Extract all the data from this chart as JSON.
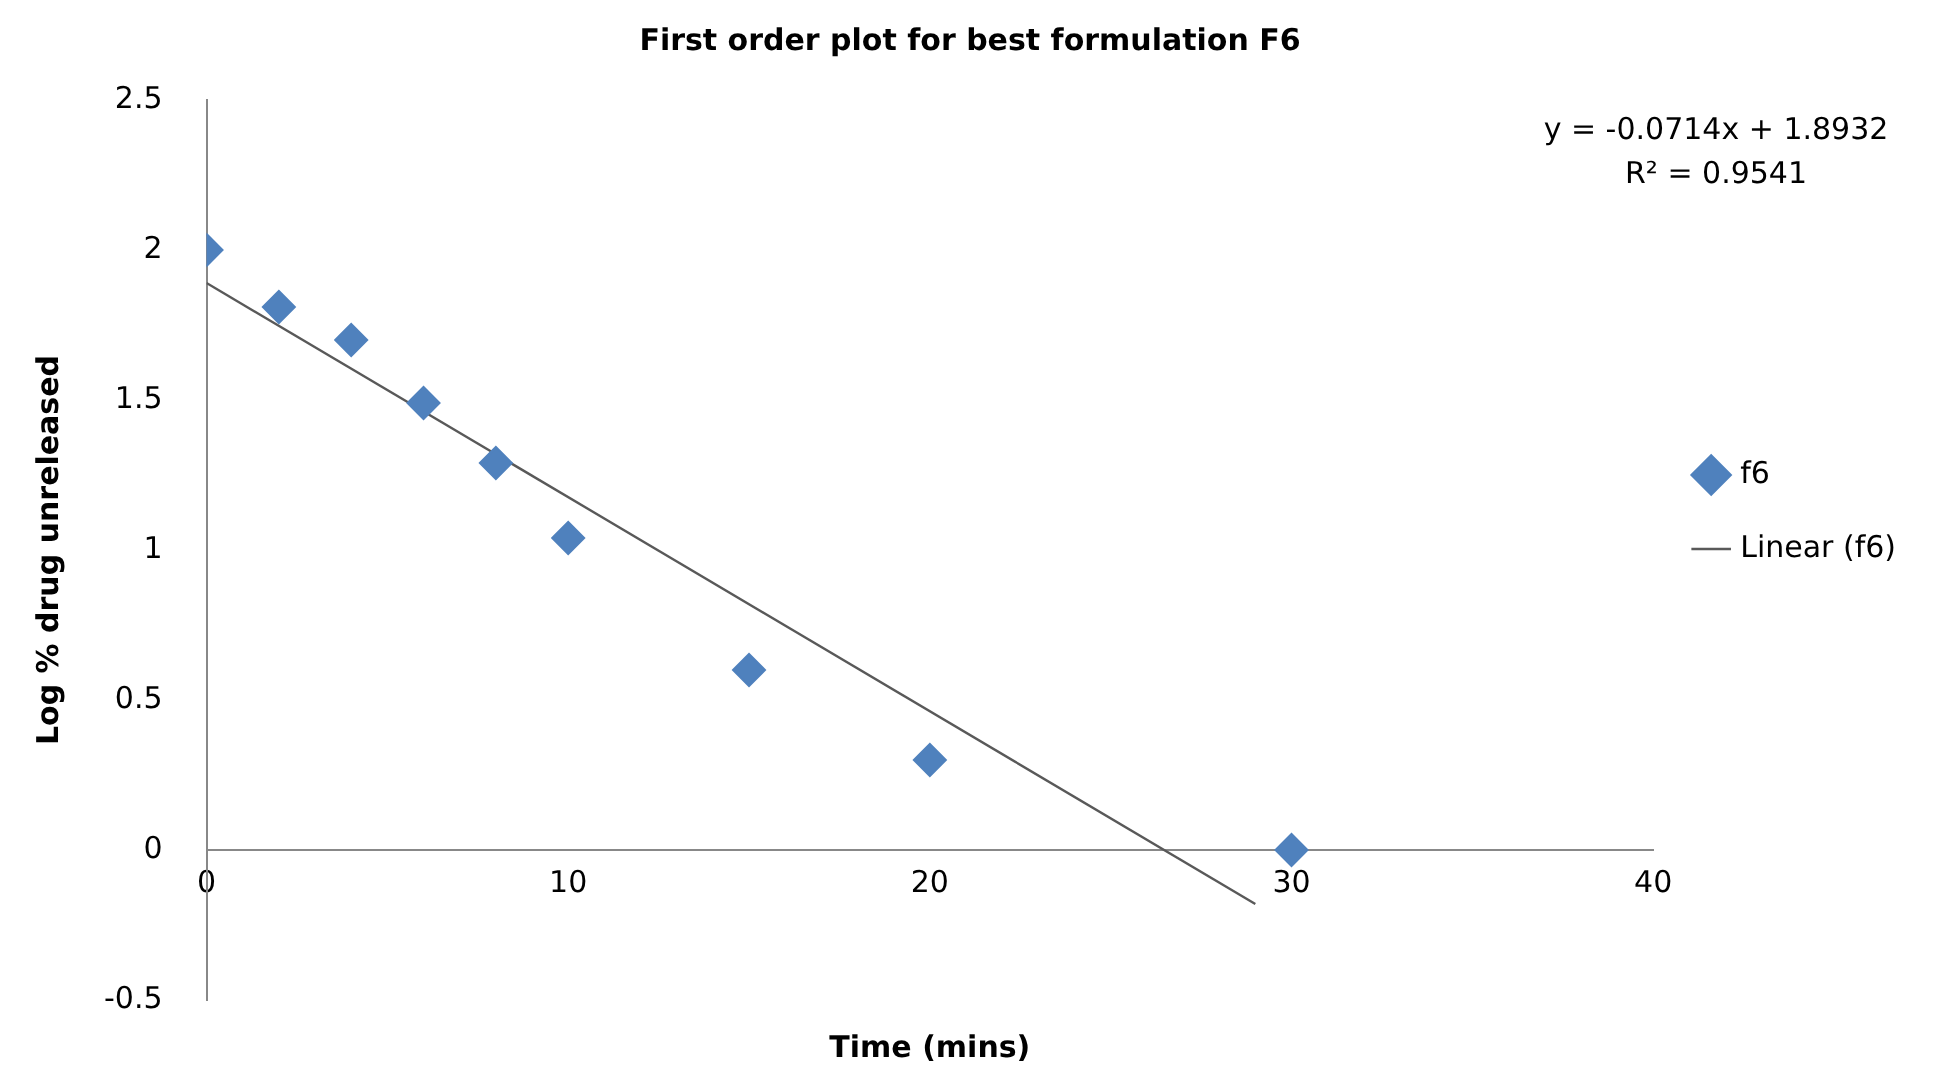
{
  "chart_data": {
    "type": "scatter",
    "title": "First order plot for best formulation F6",
    "xlabel": "Time (mins)",
    "ylabel": "Log % drug unreleased",
    "x": [
      0,
      2,
      4,
      6,
      8,
      10,
      15,
      20,
      30
    ],
    "series": [
      {
        "name": "f6",
        "marker": "diamond",
        "color": "#4f81bd",
        "values": [
          2,
          1.81,
          1.7,
          1.49,
          1.29,
          1.04,
          0.6,
          0.3,
          0
        ]
      },
      {
        "name": "Linear (f6)",
        "type": "line",
        "marker": "none",
        "color": "#595959",
        "x": [
          0,
          29
        ],
        "values": [
          1.89,
          -0.18
        ]
      }
    ],
    "xlim": [
      0,
      40
    ],
    "xticks": [
      0,
      10,
      20,
      30,
      40
    ],
    "ylim": [
      -0.5,
      2.5
    ],
    "yticks": [
      -0.5,
      0,
      0.5,
      1,
      1.5,
      2,
      2.5
    ],
    "grid": false,
    "legend": "right",
    "annotations": [
      "y = -0.0714x + 1.8932",
      "R² = 0.9541"
    ]
  }
}
